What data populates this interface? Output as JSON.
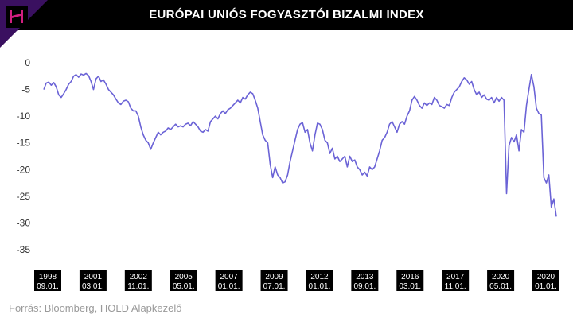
{
  "title": "EURÓPAI UNIÓS FOGYASZTÓI BIZALMI INDEX",
  "source": "Forrás: Bloomberg, HOLD Alapkezelő",
  "colors": {
    "line": "#6b63d6",
    "header": "#000000",
    "logo": "#d21f80",
    "corner": "#3a1060"
  },
  "icons": {
    "logo": "hold-logo-icon"
  },
  "chart_data": {
    "type": "line",
    "title": "EURÓPAI UNIÓS FOGYASZTÓI BIZALMI INDEX",
    "xlabel": "",
    "ylabel": "",
    "ylim": [
      -35,
      0
    ],
    "yticks": [
      0,
      -5,
      -10,
      -15,
      -20,
      -25,
      -30,
      -35
    ],
    "xticks": [
      {
        "l1": "1998",
        "l2": "09.01."
      },
      {
        "l1": "2001",
        "l2": "03.01."
      },
      {
        "l1": "2002",
        "l2": "11.01."
      },
      {
        "l1": "2005",
        "l2": "05.01."
      },
      {
        "l1": "2007",
        "l2": "01.01."
      },
      {
        "l1": "2009",
        "l2": "07.01."
      },
      {
        "l1": "2012",
        "l2": "01.01."
      },
      {
        "l1": "2013",
        "l2": "09.01."
      },
      {
        "l1": "2016",
        "l2": "03.01."
      },
      {
        "l1": "2017",
        "l2": "11.01."
      },
      {
        "l1": "2020",
        "l2": "05.01."
      },
      {
        "l1": "2020",
        "l2": "01.01."
      }
    ],
    "grid": false,
    "legend": "none",
    "series": [
      {
        "values": [
          -5.0,
          -3.8,
          -3.6,
          -4.2,
          -3.7,
          -4.5,
          -6.0,
          -6.5,
          -5.8,
          -5.0,
          -4.0,
          -3.5,
          -2.5,
          -2.2,
          -2.7,
          -2.1,
          -2.3,
          -2.0,
          -2.4,
          -3.5,
          -5.0,
          -3.0,
          -2.5,
          -3.5,
          -3.2,
          -4.0,
          -5.0,
          -5.5,
          -6.0,
          -6.8,
          -7.5,
          -7.8,
          -7.2,
          -7.0,
          -7.3,
          -8.5,
          -9.0,
          -9.0,
          -10.0,
          -12.0,
          -13.5,
          -14.5,
          -15.0,
          -16.2,
          -15.0,
          -14.0,
          -13.0,
          -13.5,
          -13.0,
          -12.8,
          -12.2,
          -12.5,
          -12.0,
          -11.5,
          -12.0,
          -11.8,
          -12.0,
          -11.5,
          -11.3,
          -11.8,
          -11.0,
          -11.5,
          -12.0,
          -12.8,
          -13.0,
          -12.5,
          -12.8,
          -11.0,
          -10.5,
          -10.0,
          -10.5,
          -9.5,
          -9.0,
          -9.5,
          -8.8,
          -8.5,
          -8.0,
          -7.5,
          -7.0,
          -7.5,
          -6.5,
          -6.8,
          -6.0,
          -5.5,
          -5.8,
          -7.0,
          -8.5,
          -11.0,
          -13.5,
          -14.5,
          -15.0,
          -19.0,
          -21.5,
          -19.5,
          -21.0,
          -21.5,
          -22.5,
          -22.3,
          -21.0,
          -18.5,
          -16.5,
          -14.5,
          -12.5,
          -11.5,
          -11.2,
          -13.0,
          -12.5,
          -15.0,
          -16.5,
          -13.5,
          -11.3,
          -11.5,
          -12.5,
          -14.5,
          -15.0,
          -17.0,
          -16.0,
          -18.0,
          -17.5,
          -18.5,
          -18.0,
          -17.5,
          -19.5,
          -17.5,
          -18.5,
          -18.2,
          -19.5,
          -20.0,
          -21.0,
          -20.5,
          -21.2,
          -19.5,
          -20.0,
          -19.5,
          -18.0,
          -16.5,
          -14.5,
          -14.0,
          -13.0,
          -11.5,
          -11.0,
          -12.0,
          -13.0,
          -11.5,
          -11.0,
          -11.5,
          -10.0,
          -9.0,
          -7.0,
          -6.3,
          -7.0,
          -8.0,
          -8.5,
          -7.5,
          -8.0,
          -7.5,
          -7.8,
          -6.5,
          -7.0,
          -8.0,
          -8.2,
          -8.5,
          -7.8,
          -8.0,
          -6.5,
          -5.5,
          -5.0,
          -4.5,
          -3.5,
          -2.8,
          -3.2,
          -4.0,
          -3.5,
          -5.0,
          -6.0,
          -5.5,
          -6.5,
          -6.0,
          -6.8,
          -7.0,
          -6.5,
          -7.5,
          -6.5,
          -7.2,
          -6.5,
          -7.0,
          -24.5,
          -15.5,
          -14.0,
          -14.8,
          -13.5,
          -16.5,
          -12.5,
          -13.0,
          -8.0,
          -5.0,
          -2.2,
          -4.5,
          -8.5,
          -9.5,
          -9.8,
          -21.5,
          -22.5,
          -21.0,
          -27.0,
          -25.5,
          -28.8
        ]
      }
    ]
  }
}
